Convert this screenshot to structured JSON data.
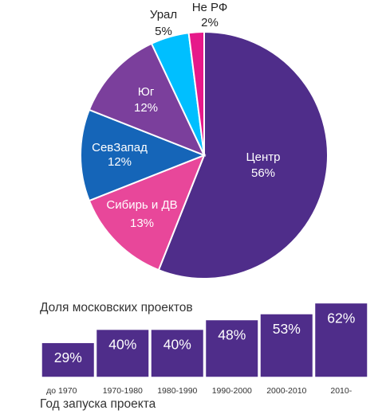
{
  "chart_data": [
    {
      "type": "pie",
      "slices": [
        {
          "label": "Центр",
          "value": 56,
          "value_label": "56%",
          "color": "#4f2d8a"
        },
        {
          "label": "Сибирь и ДВ",
          "value": 13,
          "value_label": "13%",
          "color": "#e8479a"
        },
        {
          "label": "СевЗапад",
          "value": 12,
          "value_label": "12%",
          "color": "#1565b8"
        },
        {
          "label": "Юг",
          "value": 12,
          "value_label": "12%",
          "color": "#7b3f9c"
        },
        {
          "label": "Урал",
          "value": 5,
          "value_label": "5%",
          "color": "#00bfff"
        },
        {
          "label": "Не РФ",
          "value": 2,
          "value_label": "2%",
          "color": "#e6198a"
        }
      ],
      "start_angle": "12 o'clock",
      "direction": "clockwise"
    },
    {
      "type": "bar",
      "title": "Доля московских проектов",
      "xlabel": "Год запуска проекта",
      "categories": [
        "до 1970",
        "1970-1980",
        "1980-1990",
        "1990-2000",
        "2000-2010",
        "2010-"
      ],
      "values": [
        29,
        40,
        40,
        48,
        53,
        62
      ],
      "value_labels": [
        "29%",
        "40%",
        "40%",
        "48%",
        "53%",
        "62%"
      ],
      "unit": "%",
      "color": "#4f2d8a",
      "grid": false
    }
  ]
}
